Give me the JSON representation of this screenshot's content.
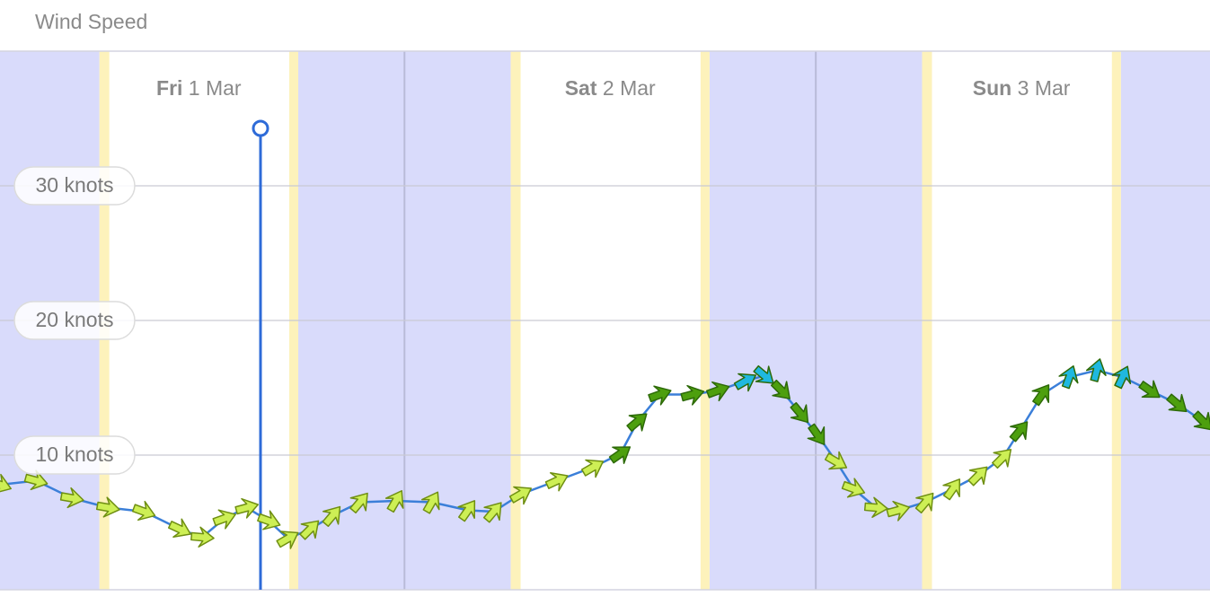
{
  "chart_data": {
    "type": "line",
    "title": "Wind Speed",
    "days": [
      {
        "weekday": "Fri",
        "date": "1 Mar"
      },
      {
        "weekday": "Sat",
        "date": "2 Mar"
      },
      {
        "weekday": "Sun",
        "date": "3 Mar"
      }
    ],
    "daylight": [
      {
        "start": 6.2,
        "end": 17.8
      },
      {
        "start": 30.2,
        "end": 41.8
      },
      {
        "start": 54.2,
        "end": 65.8
      }
    ],
    "current_time": 15.6,
    "xlim": [
      0.4,
      71.0
    ],
    "ylim": [
      0,
      40
    ],
    "yticks": [
      {
        "value": 10,
        "label": "10 knots"
      },
      {
        "value": 20,
        "label": "20 knots"
      },
      {
        "value": 30,
        "label": "30 knots"
      }
    ],
    "grid": true,
    "night_color": "#d9dbfb",
    "twilight_color": "#fdf2bb",
    "now_color": "#2e6bd8",
    "color_bands": [
      {
        "from": 0,
        "color": "#cdef55"
      },
      {
        "from": 10,
        "color": "#4d9f0e"
      },
      {
        "from": 15.5,
        "color": "#1fb8e0"
      }
    ],
    "x": [
      0.4,
      2.5,
      4.6,
      6.7,
      8.8,
      10.9,
      12.2,
      13.5,
      14.8,
      16.1,
      17.2,
      18.5,
      19.8,
      21.4,
      23.5,
      25.6,
      27.7,
      29.2,
      30.8,
      32.9,
      35.0,
      36.6,
      37.6,
      38.9,
      40.8,
      42.3,
      43.9,
      45.0,
      46.0,
      47.1,
      48.1,
      49.2,
      50.2,
      51.5,
      52.8,
      54.4,
      56.0,
      57.5,
      58.9,
      59.9,
      61.2,
      62.8,
      64.4,
      65.9,
      67.5,
      69.1,
      70.6
    ],
    "series": [
      {
        "color": "#3b7fd9",
        "values": [
          7.8,
          8.1,
          6.8,
          6.1,
          5.8,
          4.5,
          3.9,
          5.3,
          6.1,
          5.1,
          3.8,
          4.5,
          5.5,
          6.5,
          6.6,
          6.5,
          5.9,
          5.8,
          7.1,
          8.1,
          9.1,
          10.1,
          12.5,
          14.5,
          14.5,
          14.8,
          15.5,
          15.9,
          14.8,
          13.1,
          11.5,
          9.5,
          7.5,
          6.1,
          5.9,
          6.5,
          7.5,
          8.5,
          9.8,
          11.8,
          14.5,
          15.8,
          16.3,
          15.8,
          14.8,
          13.8,
          12.5
        ],
        "directions": [
          110,
          105,
          100,
          100,
          110,
          115,
          95,
          70,
          75,
          110,
          60,
          45,
          40,
          40,
          30,
          30,
          35,
          40,
          60,
          65,
          60,
          55,
          50,
          70,
          75,
          70,
          60,
          130,
          135,
          140,
          145,
          120,
          110,
          95,
          75,
          40,
          35,
          45,
          45,
          40,
          35,
          20,
          15,
          25,
          125,
          130,
          135
        ]
      }
    ]
  }
}
